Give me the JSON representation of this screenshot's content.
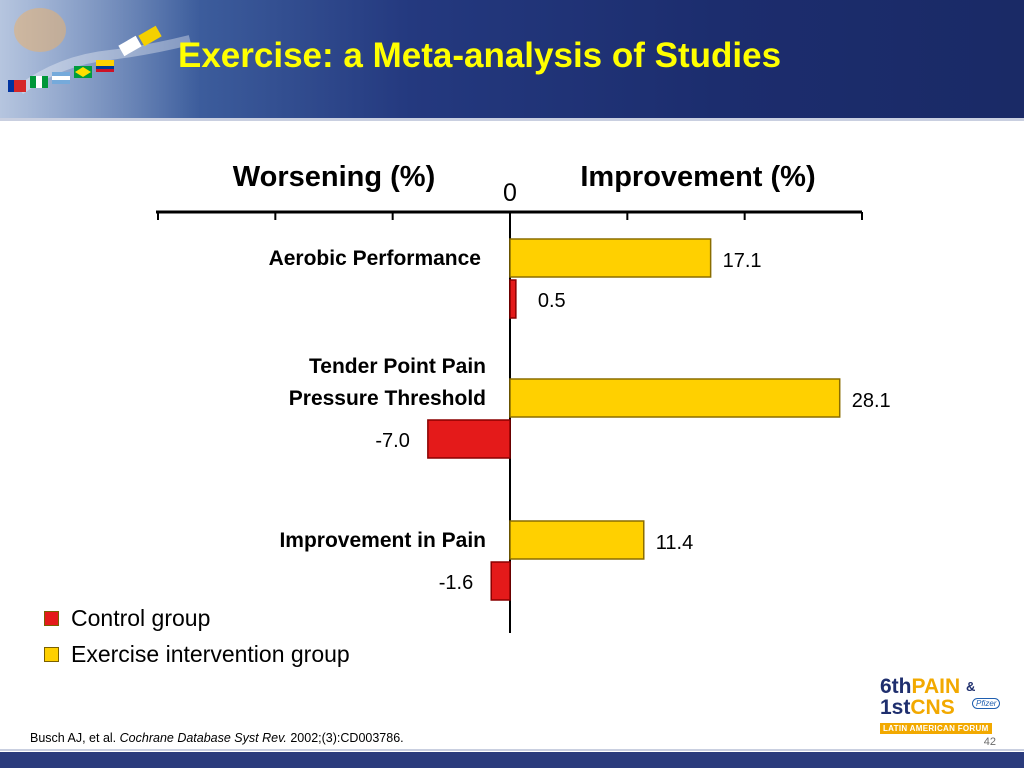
{
  "slide": {
    "title": "Exercise: a Meta-analysis of Studies",
    "page_number": "42"
  },
  "citation": {
    "authors": "Busch AJ, et al.",
    "journal": "Cochrane Database Syst Rev.",
    "details": "2002;(3):CD003786."
  },
  "logo": {
    "line1_num": "6th",
    "line1_word": "PAIN",
    "line1_amp": "&",
    "line2_num": "1st",
    "line2_word": "CNS",
    "sponsor": "Pfizer",
    "subtitle": "LATIN AMERICAN FORUM"
  },
  "colors": {
    "exercise": "#ffd000",
    "exercise_edge": "#8a6d00",
    "control": "#e41a1a",
    "control_edge": "#8a0000",
    "header_title": "#ffff00"
  },
  "legend": {
    "items": [
      {
        "label": "Control group",
        "color": "#e41a1a"
      },
      {
        "label": "Exercise intervention group",
        "color": "#ffd000"
      }
    ]
  },
  "chart_data": {
    "type": "bar",
    "orientation": "horizontal",
    "left_label": "Worsening (%)",
    "right_label": "Improvement (%)",
    "zero_label": "0",
    "xlim": [
      -30,
      30
    ],
    "categories": [
      [
        "Aerobic Performance"
      ],
      [
        "Tender Point Pain",
        "Pressure Threshold"
      ],
      [
        "Improvement in Pain"
      ]
    ],
    "series": [
      {
        "name": "Exercise intervention group",
        "values": [
          17.1,
          28.1,
          11.4
        ],
        "labels": [
          "17.1",
          "28.1",
          "11.4"
        ]
      },
      {
        "name": "Control group",
        "values": [
          0.5,
          -7.0,
          -1.6
        ],
        "labels": [
          "0.5",
          "-7.0",
          "-1.6"
        ]
      }
    ],
    "legend_position": "bottom-left",
    "grid": false
  }
}
